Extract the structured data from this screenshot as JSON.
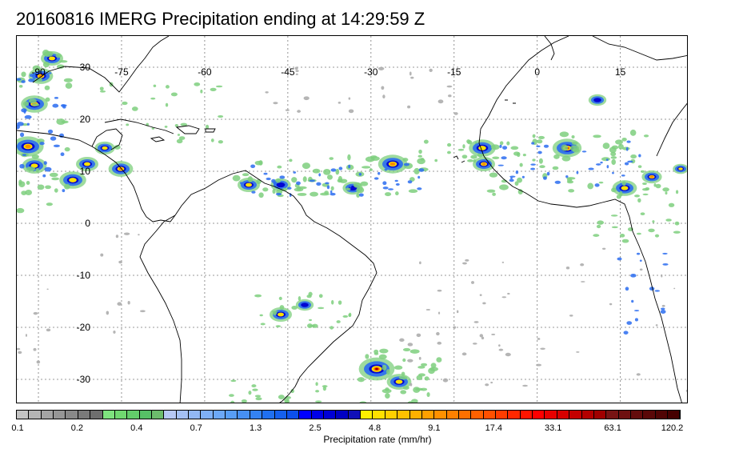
{
  "title": "20160816 IMERG Precipitation ending at 14:29:59 Z",
  "map": {
    "lon_labels": [
      "-90",
      "-75",
      "-60",
      "-45",
      "-30",
      "-15",
      "0",
      "15"
    ],
    "lat_labels": [
      "30",
      "20",
      "10",
      "0",
      "-10",
      "-20",
      "-30"
    ],
    "gridline_style": "dotted",
    "coastline_color": "#000000"
  },
  "colorbar": {
    "colors": [
      "#c4c4c4",
      "#b4b4b4",
      "#a4a4a4",
      "#969696",
      "#888888",
      "#7a7a7a",
      "#6e6e6e",
      "#7ee27e",
      "#70d870",
      "#62cc6a",
      "#56c066",
      "#6cbc6c",
      "#b6c8f4",
      "#a4c0f4",
      "#92b8f4",
      "#7eb0f6",
      "#6ca8f6",
      "#589ef6",
      "#4690f4",
      "#3482f2",
      "#2070f0",
      "#1560ee",
      "#0c50ec",
      "#0000ff",
      "#0000e8",
      "#0000d6",
      "#0000c4",
      "#1010b8",
      "#fff000",
      "#ffe000",
      "#ffd000",
      "#ffc000",
      "#ffb000",
      "#ffa000",
      "#ff9000",
      "#ff8000",
      "#ff7000",
      "#ff6000",
      "#ff5000",
      "#ff3c00",
      "#ff2800",
      "#ff1400",
      "#ff0000",
      "#e80000",
      "#d60000",
      "#c40000",
      "#b40000",
      "#a00000",
      "#781414",
      "#6e1010",
      "#640c0c",
      "#5a0808",
      "#500404",
      "#460000"
    ],
    "tick_labels": [
      "0.1",
      "0.2",
      "0.4",
      "0.7",
      "1.3",
      "2.5",
      "4.8",
      "9.1",
      "17.4",
      "33.1",
      "63.1",
      "120.2"
    ],
    "label": "Precipitation rate (mm/hr)"
  },
  "precip_colors": {
    "light": "#7ecf7e",
    "gray": "#a8a8a8",
    "blue": "#2a6cf0",
    "deep_blue": "#0000d0",
    "yellow": "#ffe000",
    "orange": "#ff8c00",
    "red": "#e01000",
    "dark_red": "#8c0000"
  }
}
